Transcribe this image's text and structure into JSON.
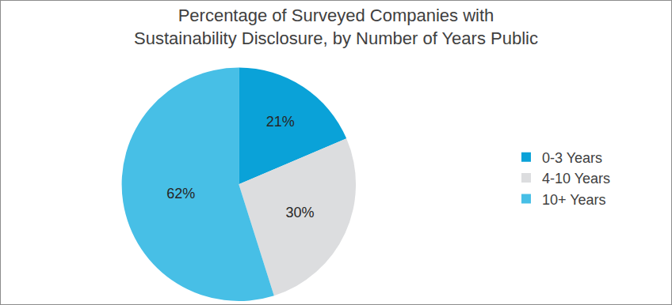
{
  "chart_data": {
    "type": "pie",
    "title": "Percentage of Surveyed Companies with\nSustainability Disclosure, by Number of Years Public",
    "categories": [
      "0-3 Years",
      "4-10 Years",
      "10+ Years"
    ],
    "values": [
      21,
      30,
      62
    ],
    "value_labels": [
      "21%",
      "30%",
      "62%"
    ],
    "colors": [
      "#0aa2d8",
      "#dcdddf",
      "#47bfe6"
    ],
    "data_labels": true,
    "legend": "right"
  }
}
